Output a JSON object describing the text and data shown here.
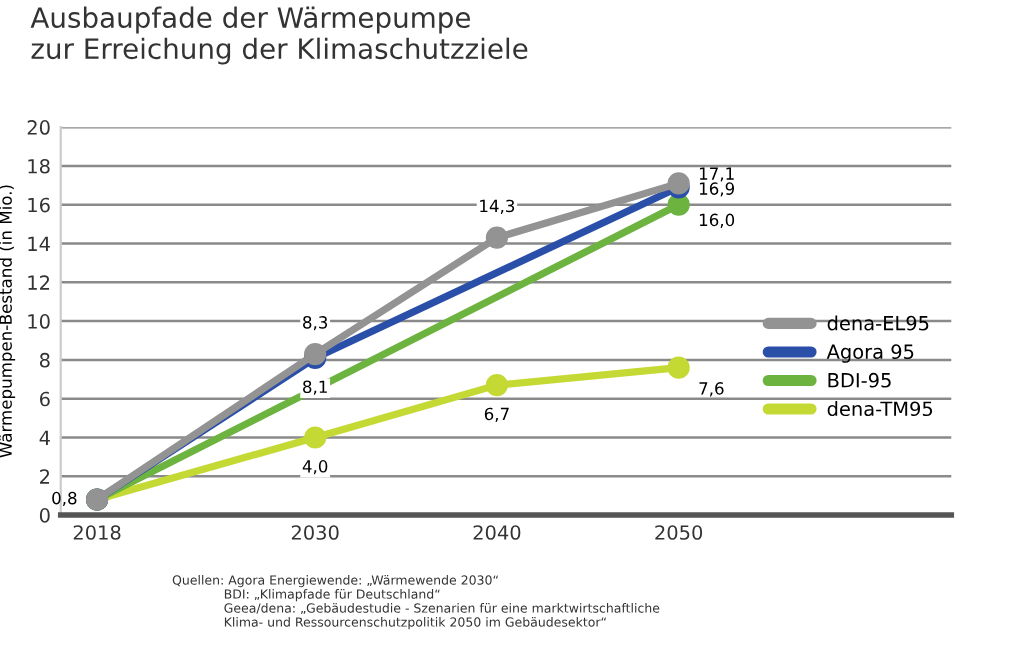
{
  "chart_data": {
    "type": "line",
    "title": "Ausbaupfade der Wärmepumpe\nzur Erreichung der Klimaschutzziele",
    "ylabel": "Wärmepumpen-Bestand (in Mio.)",
    "xlim": [
      2016,
      2065
    ],
    "xticks": [
      2018,
      2030,
      2040,
      2050
    ],
    "ylim": [
      0,
      20
    ],
    "yticks": [
      0,
      2,
      4,
      6,
      8,
      10,
      12,
      14,
      16,
      18,
      20
    ],
    "grid": "y",
    "legend": "right",
    "marker": "circle",
    "line_style": "solid",
    "series": [
      {
        "name": "dena-EL95",
        "color": "#939393",
        "x": [
          2018,
          2030,
          2040,
          2050
        ],
        "values": [
          0.8,
          8.3,
          14.3,
          17.1
        ],
        "value_labels": [
          null,
          "8,3",
          "14,3",
          "17,1"
        ]
      },
      {
        "name": "Agora 95",
        "color": "#2a4fa8",
        "x": [
          2018,
          2030,
          2050
        ],
        "values": [
          0.8,
          8.1,
          16.9
        ],
        "value_labels": [
          null,
          "8,1",
          "16,9"
        ]
      },
      {
        "name": "BDI-95",
        "color": "#6cb33f",
        "x": [
          2018,
          2050
        ],
        "values": [
          0.8,
          16.0
        ],
        "value_labels": [
          null,
          "16,0"
        ]
      },
      {
        "name": "dena-TM95",
        "color": "#c5d934",
        "x": [
          2018,
          2030,
          2040,
          2050
        ],
        "values": [
          0.8,
          4.0,
          6.7,
          7.6
        ],
        "value_labels": [
          "0,8",
          "4,0",
          "6,7",
          "7,6"
        ]
      }
    ],
    "annotations": [
      "Quellen: Agora Energiewende: „Wärmewende 2030“\n             BDI: „Klimapfade für Deutschland“\n             Geea/dena: „Gebäudestudie - Szenarien für eine marktwirtschaftliche\n             Klima- und Ressourcenschutzpolitik 2050 im Gebäudesektor“"
    ]
  }
}
